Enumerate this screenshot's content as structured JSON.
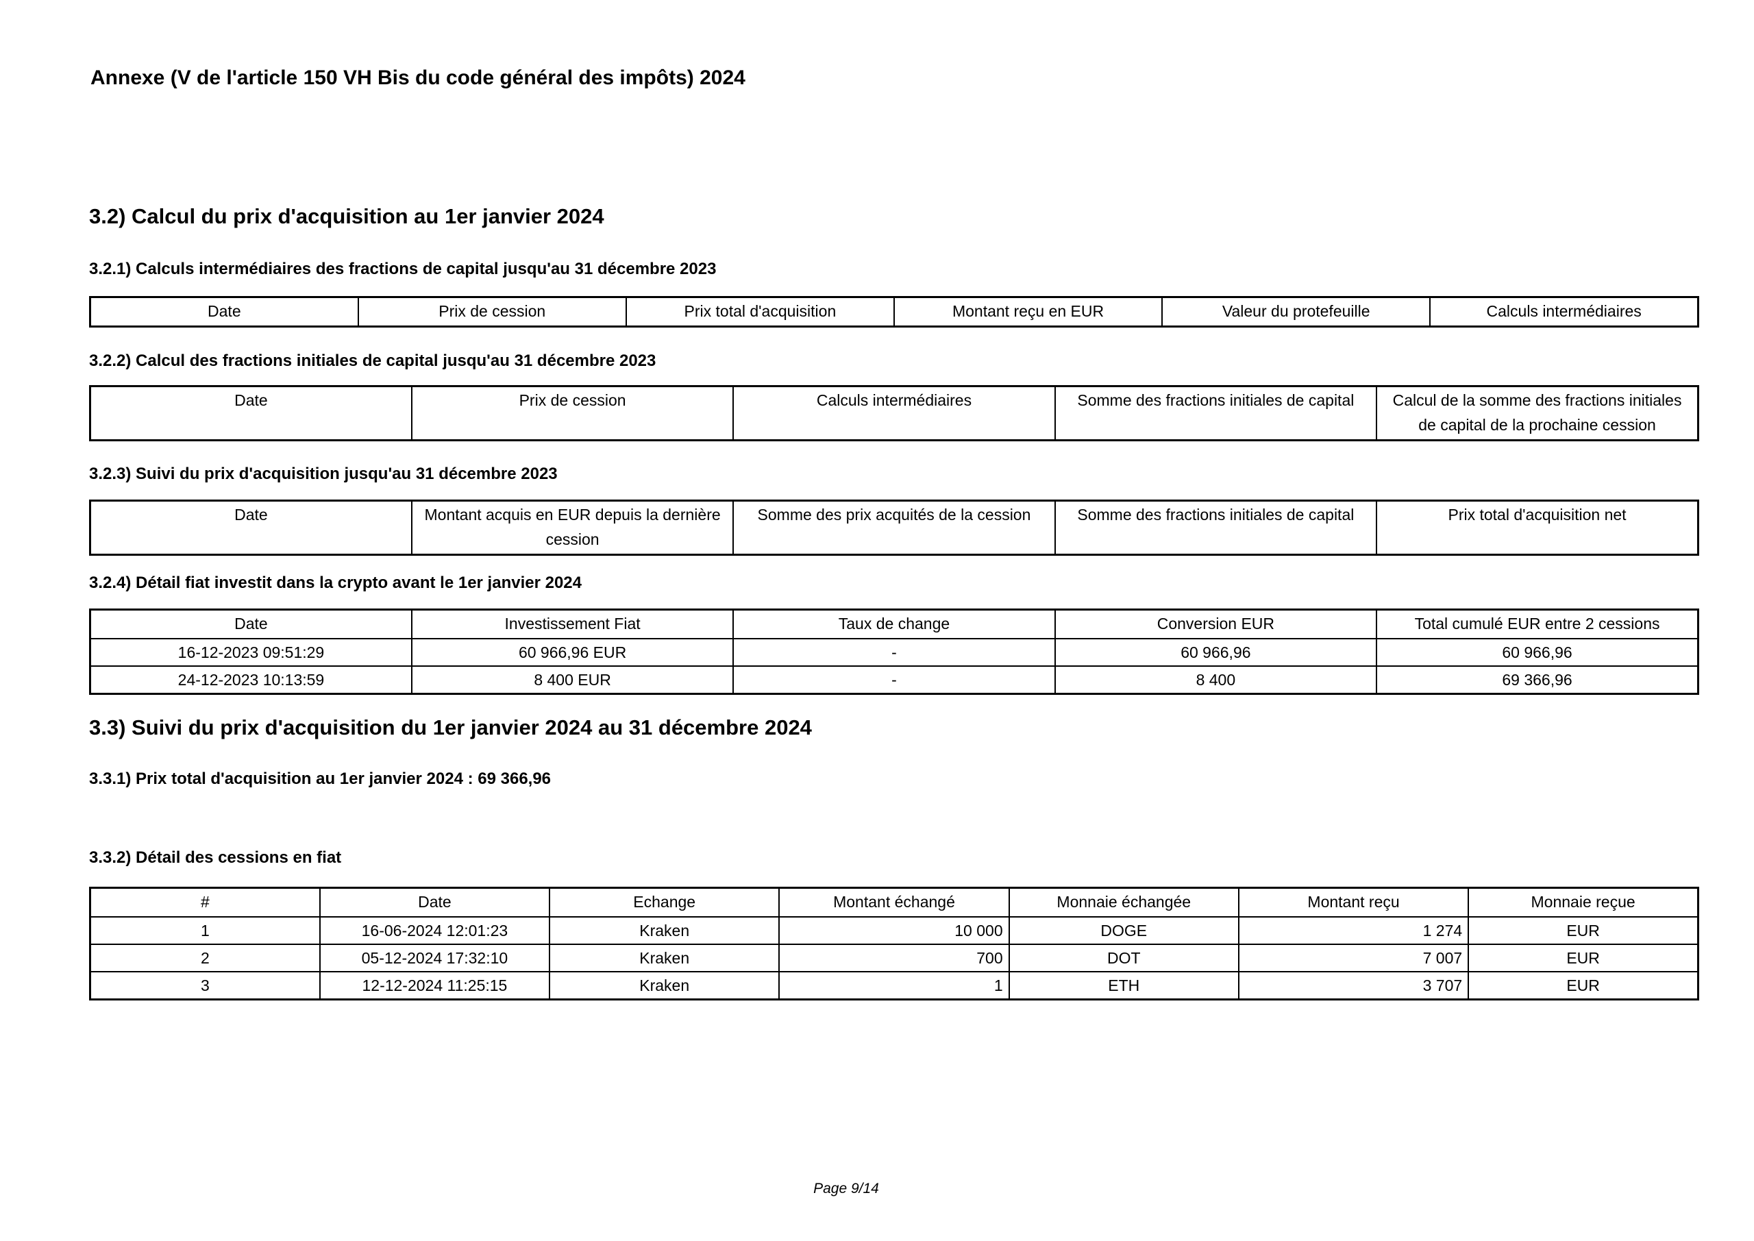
{
  "page": {
    "title": "Annexe (V de l'article 150 VH Bis du code général des impôts) 2024",
    "footer": "Page 9/14"
  },
  "colors": {
    "text": "#000000",
    "background": "#ffffff",
    "table_border": "#000000"
  },
  "sections": {
    "s32": {
      "heading": "3.2) Calcul du prix d'acquisition au 1er janvier 2024"
    },
    "s321": {
      "heading": "3.2.1) Calculs intermédiaires des fractions de capital jusqu'au 31 décembre 2023",
      "table": {
        "headers": [
          "Date",
          "Prix de cession",
          "Prix total d'acquisition",
          "Montant reçu en EUR",
          "Valeur du protefeuille",
          "Calculs intermédiaires"
        ],
        "rows": []
      }
    },
    "s322": {
      "heading": "3.2.2) Calcul des fractions initiales de capital jusqu'au 31 décembre 2023",
      "table": {
        "headers": [
          "Date",
          "Prix de cession",
          "Calculs intermédiaires",
          "Somme des fractions initiales de capital",
          "Calcul de la somme des fractions initiales de capital de la prochaine cession"
        ],
        "rows": []
      }
    },
    "s323": {
      "heading": "3.2.3) Suivi du prix d'acquisition jusqu'au 31 décembre 2023",
      "table": {
        "headers": [
          "Date",
          "Montant acquis en EUR depuis la dernière cession",
          "Somme des prix acquités de la cession",
          "Somme des fractions initiales de capital",
          "Prix total d'acquisition net"
        ],
        "rows": []
      }
    },
    "s324": {
      "heading": "3.2.4) Détail fiat investit dans la crypto avant le 1er janvier 2024",
      "table": {
        "headers": [
          "Date",
          "Investissement Fiat",
          "Taux de change",
          "Conversion EUR",
          "Total cumulé EUR entre 2 cessions"
        ],
        "rows": [
          [
            "16-12-2023 09:51:29",
            "60 966,96 EUR",
            "-",
            "60 966,96",
            "60 966,96"
          ],
          [
            "24-12-2023 10:13:59",
            "8 400 EUR",
            "-",
            "8 400",
            "69 366,96"
          ]
        ]
      }
    },
    "s33": {
      "heading": "3.3) Suivi du prix d'acquisition du 1er janvier 2024 au 31 décembre 2024"
    },
    "s331": {
      "heading": "3.3.1) Prix total d'acquisition au 1er janvier 2024 : 69 366,96"
    },
    "s332": {
      "heading": "3.3.2) Détail des cessions en fiat",
      "table": {
        "headers": [
          "#",
          "Date",
          "Echange",
          "Montant échangé",
          "Monnaie échangée",
          "Montant reçu",
          "Monnaie reçue"
        ],
        "rows": [
          [
            "1",
            "16-06-2024 12:01:23",
            "Kraken",
            "10 000",
            "DOGE",
            "1 274",
            "EUR"
          ],
          [
            "2",
            "05-12-2024 17:32:10",
            "Kraken",
            "700",
            "DOT",
            "7 007",
            "EUR"
          ],
          [
            "3",
            "12-12-2024 11:25:15",
            "Kraken",
            "1",
            "ETH",
            "3 707",
            "EUR"
          ]
        ]
      }
    }
  }
}
